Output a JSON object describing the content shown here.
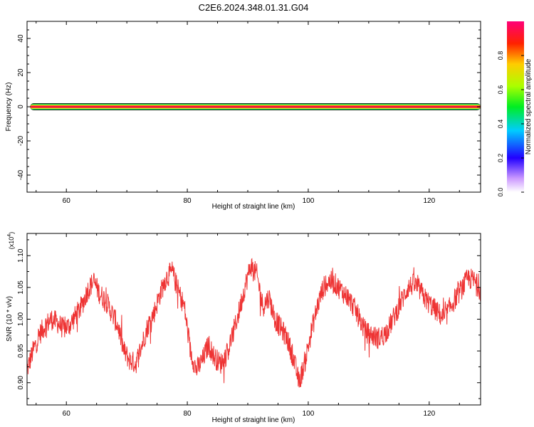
{
  "title": "C2E6.2024.348.01.31.G04",
  "chart_data": [
    {
      "type": "heatmap",
      "xlabel": "Height of straight line (km)",
      "ylabel": "Frequency (Hz)",
      "xlim": [
        53.5,
        128.5
      ],
      "ylim": [
        -50,
        50
      ],
      "xticks": [
        60,
        80,
        100,
        120
      ],
      "yticks": [
        40,
        20,
        0,
        -20,
        -40
      ],
      "ytick_labels": [
        "40",
        "20",
        "0",
        "-20",
        "-40"
      ],
      "band_frequency_hz": 0,
      "band_x_range": [
        54,
        128.5
      ],
      "grid": false
    },
    {
      "type": "colorbar",
      "label": "Normalized spectral amplitude",
      "range": [
        0,
        1
      ],
      "ticks": [
        0.0,
        0.2,
        0.4,
        0.6,
        0.8
      ],
      "tick_labels": [
        "0.0",
        "0.2",
        "0.4",
        "0.6",
        "0.8"
      ],
      "colors": [
        "#ffffff",
        "#cc88ff",
        "#0000ff",
        "#00ccff",
        "#00ff00",
        "#ccff00",
        "#ffcc00",
        "#ff0000",
        "#ff0088"
      ]
    },
    {
      "type": "line",
      "xlabel": "Height of straight line (km)",
      "ylabel": "SNR (10 * v/v)",
      "scale_label": "(x10",
      "scale_exponent": "4",
      "xlim": [
        53.5,
        128.5
      ],
      "ylim": [
        0.865,
        1.135
      ],
      "xticks": [
        60,
        80,
        100,
        120
      ],
      "yticks": [
        0.9,
        0.95,
        1.0,
        1.05,
        1.1
      ],
      "ytick_labels": [
        "0.90",
        "0.95",
        "1.00",
        "1.05",
        "1.10"
      ],
      "grid": false,
      "color": "#ee3333",
      "x": [
        53.5,
        54.5,
        55.5,
        56.5,
        57.5,
        58.5,
        59.5,
        60.5,
        61.5,
        62.5,
        63.5,
        64.5,
        65.5,
        66.5,
        67.5,
        68.5,
        69.5,
        70.5,
        71.5,
        72.5,
        73.5,
        74.5,
        75.5,
        76.5,
        77.5,
        78.5,
        79.5,
        80.5,
        81.5,
        82.5,
        83.5,
        84.5,
        85.5,
        86.5,
        87.5,
        88.5,
        89.5,
        90.5,
        91.5,
        92.5,
        93.5,
        94.5,
        95.5,
        96.5,
        97.5,
        98.5,
        99.5,
        100.5,
        101.5,
        102.5,
        103.5,
        104.5,
        105.5,
        106.5,
        107.5,
        108.5,
        109.5,
        110.5,
        111.5,
        112.5,
        113.5,
        114.5,
        115.5,
        116.5,
        117.5,
        118.5,
        119.5,
        120.5,
        121.5,
        122.5,
        123.5,
        124.5,
        125.5,
        126.5,
        127.5,
        128.5
      ],
      "y": [
        0.92,
        0.95,
        0.975,
        0.99,
        1.0,
        0.995,
        0.985,
        0.99,
        1.005,
        1.02,
        1.045,
        1.06,
        1.04,
        1.03,
        1.01,
        0.99,
        0.95,
        0.935,
        0.93,
        0.96,
        0.99,
        1.01,
        1.04,
        1.065,
        1.075,
        1.045,
        1.02,
        0.95,
        0.92,
        0.935,
        0.96,
        0.94,
        0.93,
        0.945,
        0.975,
        1.01,
        1.05,
        1.085,
        1.07,
        1.02,
        1.035,
        1.0,
        0.985,
        0.97,
        0.94,
        0.9,
        0.935,
        0.98,
        1.02,
        1.05,
        1.06,
        1.055,
        1.045,
        1.035,
        1.02,
        1.0,
        0.98,
        0.975,
        0.97,
        0.975,
        0.99,
        1.01,
        1.03,
        1.05,
        1.055,
        1.045,
        1.03,
        1.02,
        1.01,
        1.0,
        1.02,
        1.035,
        1.05,
        1.065,
        1.06,
        1.045
      ]
    }
  ]
}
